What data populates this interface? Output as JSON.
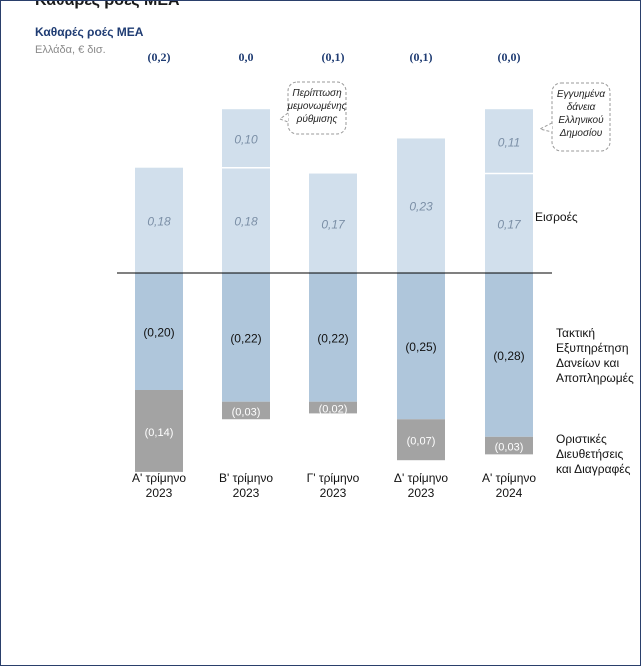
{
  "header": {
    "top_title": "Καθαρές ροές ΜΕΑ",
    "chart_title": "Καθαρές ροές ΜΕΑ",
    "chart_subtitle": "Ελλάδα, € δισ."
  },
  "colors": {
    "inflow": "#d1dfec",
    "servicing": "#afc6db",
    "settlements": "#a3a3a3",
    "baseline": "#000000",
    "net_label": "#1f3c73",
    "callout_border": "#9a9a9a"
  },
  "chart_data": {
    "type": "bar",
    "stacked": true,
    "categories": [
      "Α' τρίμηνο 2023",
      "Β' τρίμηνο 2023",
      "Γ' τρίμηνο 2023",
      "Δ' τρίμηνο 2023",
      "Α' τρίμηνο 2024"
    ],
    "category_lines": [
      [
        "Α' τρίμηνο",
        "2023"
      ],
      [
        "Β' τρίμηνο",
        "2023"
      ],
      [
        "Γ' τρίμηνο",
        "2023"
      ],
      [
        "Δ' τρίμηνο",
        "2023"
      ],
      [
        "Α' τρίμηνο",
        "2024"
      ]
    ],
    "net_labels": [
      "(0,2)",
      "0,0",
      "(0,1)",
      "(0,1)",
      "(0,0)"
    ],
    "series": [
      {
        "name": "Εισροές",
        "name_lines": [
          "Εισροές"
        ],
        "values": [
          0.18,
          0.18,
          0.17,
          0.23,
          0.17
        ],
        "labels": [
          "0,18",
          "0,18",
          "0,17",
          "0,23",
          "0,17"
        ],
        "color": "#d1dfec"
      },
      {
        "name": "Τακτική Εξυπηρέτηση Δανείων και Αποπληρωμές",
        "name_lines": [
          "Τακτική",
          "Εξυπηρέτηση",
          "Δανείων και",
          "Αποπληρωμές"
        ],
        "values": [
          -0.2,
          -0.22,
          -0.22,
          -0.25,
          -0.28
        ],
        "labels": [
          "(0,20)",
          "(0,22)",
          "(0,22)",
          "(0,25)",
          "(0,28)"
        ],
        "color": "#afc6db"
      },
      {
        "name": "Οριστικές Διευθετήσεις και Διαγραφές",
        "name_lines": [
          "Οριστικές",
          "Διευθετήσεις",
          "και Διαγραφές"
        ],
        "values": [
          -0.14,
          -0.03,
          -0.02,
          -0.07,
          -0.03
        ],
        "labels": [
          "(0,14)",
          "(0,03)",
          "(0,02)",
          "(0,07)",
          "(0,03)"
        ],
        "color": "#a3a3a3"
      }
    ],
    "extra_segments": [
      {
        "category_index": 1,
        "value": 0.1,
        "label": "0,10",
        "callout": [
          "Περίπτωση",
          "μεμονωμένης",
          "ρύθμισης"
        ]
      },
      {
        "category_index": 4,
        "value": 0.11,
        "label": "0,11",
        "callout": [
          "Εγγυημένα",
          "δάνεια",
          "Ελληνικού",
          "Δημοσίου"
        ]
      }
    ],
    "ylim": [
      -0.38,
      0.33
    ],
    "grid": false,
    "legend": "right"
  }
}
